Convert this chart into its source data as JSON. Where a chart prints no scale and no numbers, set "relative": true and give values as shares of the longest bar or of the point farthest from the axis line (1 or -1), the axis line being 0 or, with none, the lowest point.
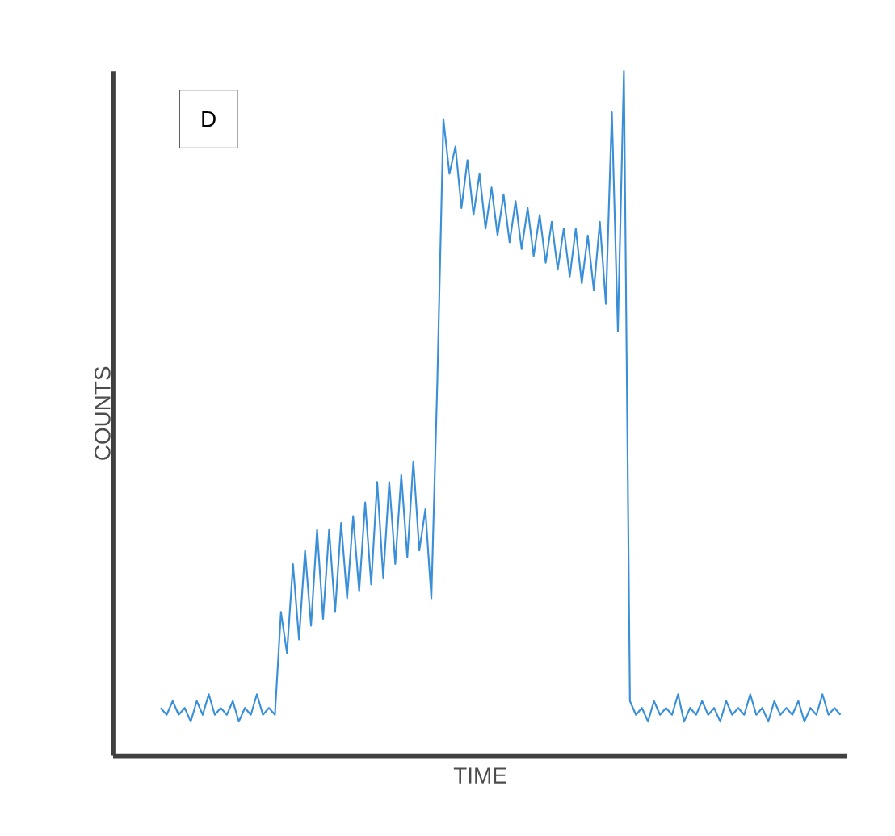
{
  "chart_data": {
    "type": "line",
    "relative": true,
    "xlabel": "TIME",
    "ylabel": "COUNTS",
    "annotations": [
      "D"
    ],
    "color": "#3a8fd9",
    "categories": [
      null,
      null,
      null,
      null,
      null,
      null,
      null,
      null,
      null,
      null,
      null,
      null,
      null,
      null,
      null,
      null,
      null,
      null,
      null,
      null,
      null,
      null,
      null,
      null,
      null,
      null,
      null,
      null,
      null,
      null,
      null,
      null,
      null,
      null,
      null,
      null,
      null,
      null,
      null,
      null,
      null,
      null,
      null,
      null,
      null,
      null,
      null,
      null,
      null,
      null,
      null,
      null,
      null,
      null,
      null,
      null,
      null,
      null,
      null,
      null,
      null,
      null,
      null,
      null,
      null,
      null,
      null,
      null,
      null,
      null,
      null,
      null,
      null,
      null,
      null,
      null,
      null,
      null,
      null,
      null,
      null,
      null,
      null,
      null,
      null,
      null,
      null,
      null,
      null,
      null,
      null,
      null,
      null,
      null,
      null,
      null,
      null,
      null,
      null,
      null,
      null,
      null,
      null,
      null,
      null,
      null,
      null,
      null,
      null,
      null,
      null,
      null,
      null,
      null
    ],
    "values": [
      0.07,
      0.06,
      0.08,
      0.06,
      0.07,
      0.05,
      0.08,
      0.06,
      0.09,
      0.06,
      0.07,
      0.06,
      0.08,
      0.05,
      0.07,
      0.06,
      0.09,
      0.06,
      0.07,
      0.06,
      0.21,
      0.15,
      0.28,
      0.17,
      0.3,
      0.19,
      0.33,
      0.2,
      0.33,
      0.21,
      0.34,
      0.23,
      0.35,
      0.24,
      0.37,
      0.25,
      0.4,
      0.26,
      0.4,
      0.28,
      0.41,
      0.29,
      0.43,
      0.3,
      0.36,
      0.23,
      0.55,
      0.93,
      0.85,
      0.89,
      0.8,
      0.87,
      0.79,
      0.85,
      0.77,
      0.83,
      0.76,
      0.82,
      0.75,
      0.81,
      0.74,
      0.8,
      0.73,
      0.79,
      0.72,
      0.78,
      0.71,
      0.77,
      0.7,
      0.77,
      0.69,
      0.76,
      0.68,
      0.78,
      0.66,
      0.94,
      0.62,
      1.0,
      0.08,
      0.06,
      0.07,
      0.05,
      0.08,
      0.06,
      0.07,
      0.06,
      0.09,
      0.05,
      0.07,
      0.06,
      0.08,
      0.06,
      0.07,
      0.05,
      0.08,
      0.06,
      0.07,
      0.06,
      0.09,
      0.06,
      0.07,
      0.05,
      0.08,
      0.06,
      0.07,
      0.06,
      0.08,
      0.05,
      0.07,
      0.06,
      0.09,
      0.06,
      0.07,
      0.06
    ]
  }
}
